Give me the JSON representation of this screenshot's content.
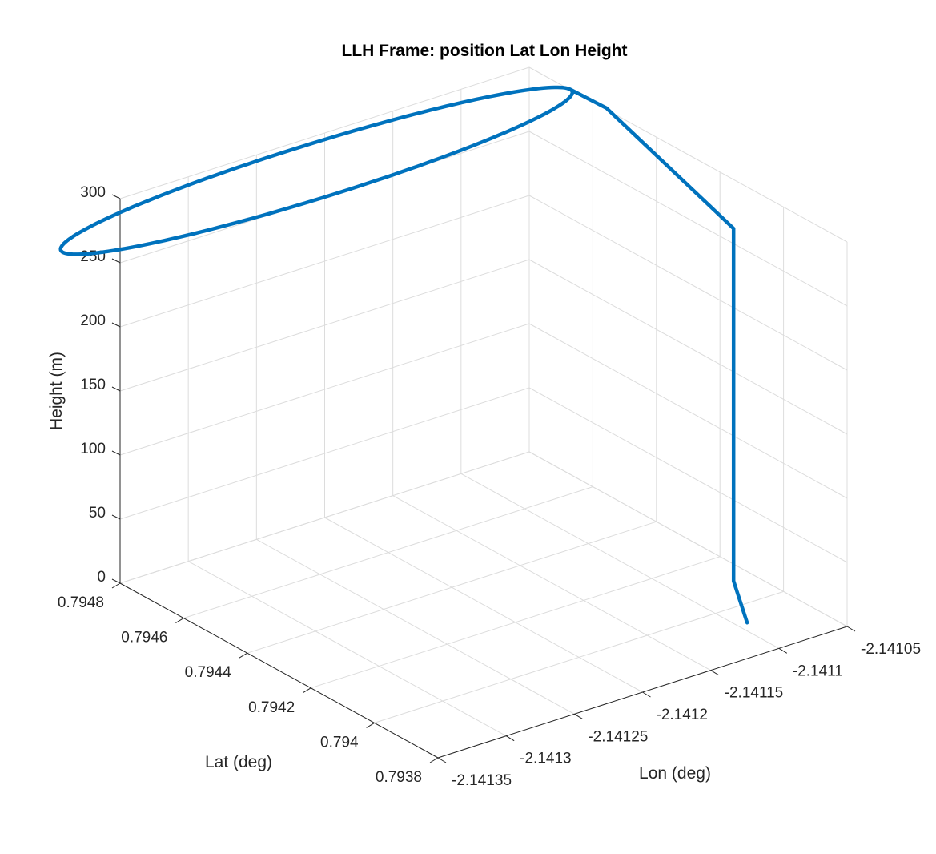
{
  "chart_data": {
    "type": "line3d",
    "title": "LLH Frame: position Lat Lon Height",
    "xlabel": "Lon (deg)",
    "ylabel": "Lat (deg)",
    "zlabel": "Height (m)",
    "xlim": [
      -2.14135,
      -2.14105
    ],
    "ylim": [
      0.7938,
      0.7948
    ],
    "zlim": [
      0,
      300
    ],
    "x_ticks": [
      -2.14135,
      -2.1413,
      -2.14125,
      -2.1412,
      -2.14115,
      -2.1411,
      -2.14105
    ],
    "x_tick_labels": [
      "-2.14135",
      "-2.1413",
      "-2.14125",
      "-2.1412",
      "-2.14115",
      "-2.1411",
      "-2.14105"
    ],
    "y_ticks": [
      0.7938,
      0.794,
      0.7942,
      0.7944,
      0.7946,
      0.7948
    ],
    "y_tick_labels": [
      "0.7938",
      "0.794",
      "0.7942",
      "0.7944",
      "0.7946",
      "0.7948"
    ],
    "z_ticks": [
      0,
      50,
      100,
      150,
      200,
      250,
      300
    ],
    "z_tick_labels": [
      "0",
      "50",
      "100",
      "150",
      "200",
      "250",
      "300"
    ],
    "grid": true,
    "series": [
      {
        "color": "#0072bd",
        "path": {
          "start": {
            "x": -2.141093,
            "y": 0.79393,
            "z": 0
          },
          "turn1": {
            "x": -2.141075,
            "y": 0.79405,
            "z": 10
          },
          "turn2": {
            "x": -2.141075,
            "y": 0.79405,
            "z": 285
          },
          "loop_start": {
            "x": -2.14104,
            "y": 0.7946,
            "z": 292
          },
          "loop": {
            "center": {
              "x": -2.141227,
              "y": 0.79471
            },
            "radius_x": 0.000186,
            "radius_y": 0.000105,
            "start_angle_deg": 0,
            "z": 292
          }
        }
      }
    ]
  }
}
